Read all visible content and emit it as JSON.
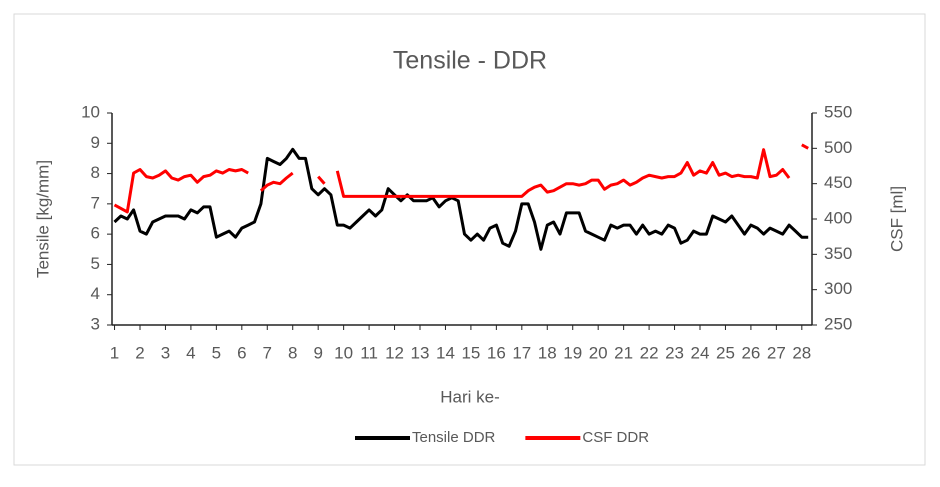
{
  "chart_data": {
    "type": "line",
    "title": "Tensile - DDR",
    "xlabel": "Hari ke-",
    "ylabel": "Tensile [kg/mm]",
    "y2label": "CSF [ml]",
    "x": [
      1,
      1.25,
      1.5,
      1.75,
      2,
      2.25,
      2.5,
      2.75,
      3,
      3.25,
      3.5,
      3.75,
      4,
      4.25,
      4.5,
      4.75,
      5,
      5.25,
      5.5,
      5.75,
      6,
      6.25,
      6.5,
      6.75,
      7,
      7.25,
      7.5,
      7.75,
      8,
      8.25,
      8.5,
      8.75,
      9,
      9.25,
      9.5,
      9.75,
      10,
      10.25,
      10.5,
      10.75,
      11,
      11.25,
      11.5,
      11.75,
      12,
      12.25,
      12.5,
      12.75,
      13,
      13.25,
      13.5,
      13.75,
      14,
      14.25,
      14.5,
      14.75,
      15,
      15.25,
      15.5,
      15.75,
      16,
      16.25,
      16.5,
      16.75,
      17,
      17.25,
      17.5,
      17.75,
      18,
      18.25,
      18.5,
      18.75,
      19,
      19.25,
      19.5,
      19.75,
      20,
      20.25,
      20.5,
      20.75,
      21,
      21.25,
      21.5,
      21.75,
      22,
      22.25,
      22.5,
      22.75,
      23,
      23.25,
      23.5,
      23.75,
      24,
      24.25,
      24.5,
      24.75,
      25,
      25.25,
      25.5,
      25.75,
      26,
      26.25,
      26.5,
      26.75,
      27,
      27.25,
      27.5,
      27.75,
      28,
      28.25
    ],
    "series": [
      {
        "name": "Tensile DDR",
        "color": "#000000",
        "values": [
          6.4,
          6.6,
          6.5,
          6.8,
          6.1,
          6.0,
          6.4,
          6.5,
          6.6,
          6.6,
          6.6,
          6.5,
          6.8,
          6.7,
          6.9,
          6.9,
          5.9,
          6.0,
          6.1,
          5.9,
          6.2,
          6.3,
          6.4,
          7.0,
          8.5,
          8.4,
          8.3,
          8.5,
          8.8,
          8.5,
          8.5,
          7.5,
          7.3,
          7.5,
          7.3,
          6.3,
          6.3,
          6.2,
          6.4,
          6.6,
          6.8,
          6.6,
          6.8,
          7.5,
          7.3,
          7.1,
          7.3,
          7.1,
          7.1,
          7.1,
          7.2,
          6.9,
          7.1,
          7.2,
          7.1,
          6.0,
          5.8,
          6.0,
          5.8,
          6.2,
          6.3,
          5.7,
          5.6,
          6.1,
          7.0,
          7.0,
          6.4,
          5.5,
          6.3,
          6.4,
          6.0,
          6.7,
          6.7,
          6.7,
          6.1,
          6.0,
          5.9,
          5.8,
          6.3,
          6.2,
          6.3,
          6.3,
          6.0,
          6.3,
          6.0,
          6.1,
          6.0,
          6.3,
          6.2,
          5.7,
          5.8,
          6.1,
          6.0,
          6.0,
          6.6,
          6.5,
          6.4,
          6.6,
          6.3,
          6.0,
          6.3,
          6.2,
          6.0,
          6.2,
          6.1,
          6.0,
          6.3,
          6.1,
          5.9,
          5.9
        ]
      },
      {
        "name": "CSF DDR",
        "color": "#ff0000",
        "axis": "y2",
        "values": [
          420,
          415,
          410,
          465,
          470,
          460,
          458,
          462,
          468,
          458,
          455,
          460,
          462,
          452,
          460,
          462,
          468,
          465,
          470,
          468,
          470,
          465,
          null,
          440,
          448,
          452,
          450,
          458,
          465,
          null,
          null,
          null,
          460,
          450,
          null,
          468,
          432,
          432,
          432,
          432,
          432,
          432,
          432,
          432,
          432,
          432,
          432,
          432,
          432,
          432,
          432,
          432,
          432,
          432,
          432,
          432,
          432,
          432,
          432,
          432,
          432,
          432,
          432,
          432,
          432,
          440,
          445,
          448,
          438,
          440,
          445,
          450,
          450,
          448,
          450,
          455,
          455,
          442,
          448,
          450,
          455,
          448,
          452,
          458,
          462,
          460,
          458,
          460,
          460,
          465,
          480,
          462,
          468,
          465,
          480,
          462,
          465,
          460,
          462,
          460,
          460,
          458,
          498,
          460,
          462,
          470,
          458,
          null,
          505,
          500
        ]
      }
    ],
    "xlim": [
      0.9,
      28.4
    ],
    "xticks": [
      1,
      2,
      3,
      4,
      5,
      6,
      7,
      8,
      9,
      10,
      11,
      12,
      13,
      14,
      15,
      16,
      17,
      18,
      19,
      20,
      21,
      22,
      23,
      24,
      25,
      26,
      27,
      28
    ],
    "ylim": [
      3,
      10
    ],
    "yticks": [
      3,
      4,
      5,
      6,
      7,
      8,
      9,
      10
    ],
    "y2lim": [
      250,
      550
    ],
    "y2ticks": [
      250,
      300,
      350,
      400,
      450,
      500,
      550
    ],
    "legend": "bottom"
  }
}
